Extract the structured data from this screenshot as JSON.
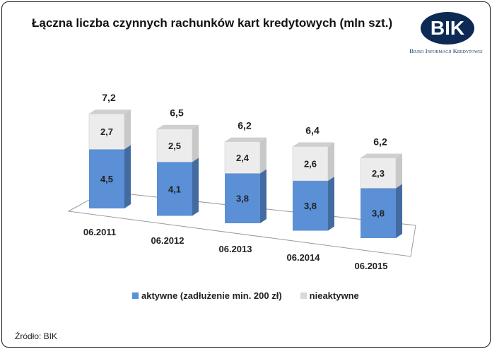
{
  "chart_data": {
    "type": "bar",
    "stacked": true,
    "title": "Łączna liczba czynnych rachunków kart kredytowych (mln szt.)",
    "categories": [
      "06.2011",
      "06.2012",
      "06.2013",
      "06.2014",
      "06.2015"
    ],
    "series": [
      {
        "name": "aktywne (zadłużenie min. 200 zł)",
        "values": [
          4.5,
          4.1,
          3.8,
          3.8,
          3.8
        ],
        "labels": [
          "4,5",
          "4,1",
          "3,8",
          "3,8",
          "3,8"
        ],
        "color": "#5b8fd6"
      },
      {
        "name": "nieaktywne",
        "values": [
          2.7,
          2.5,
          2.4,
          2.6,
          2.3
        ],
        "labels": [
          "2,7",
          "2,5",
          "2,4",
          "2,6",
          "2,3"
        ],
        "color": "#e8e8e8"
      }
    ],
    "totals": [
      7.2,
      6.5,
      6.2,
      6.4,
      6.2
    ],
    "total_labels": [
      "7,2",
      "6,5",
      "6,2",
      "6,4",
      "6,2"
    ],
    "legend_position": "bottom",
    "grid": false
  },
  "logo": {
    "text": "BIK",
    "subtitle": "Biuro Informacji Kredytowej"
  },
  "source": "Źródło: BIK"
}
